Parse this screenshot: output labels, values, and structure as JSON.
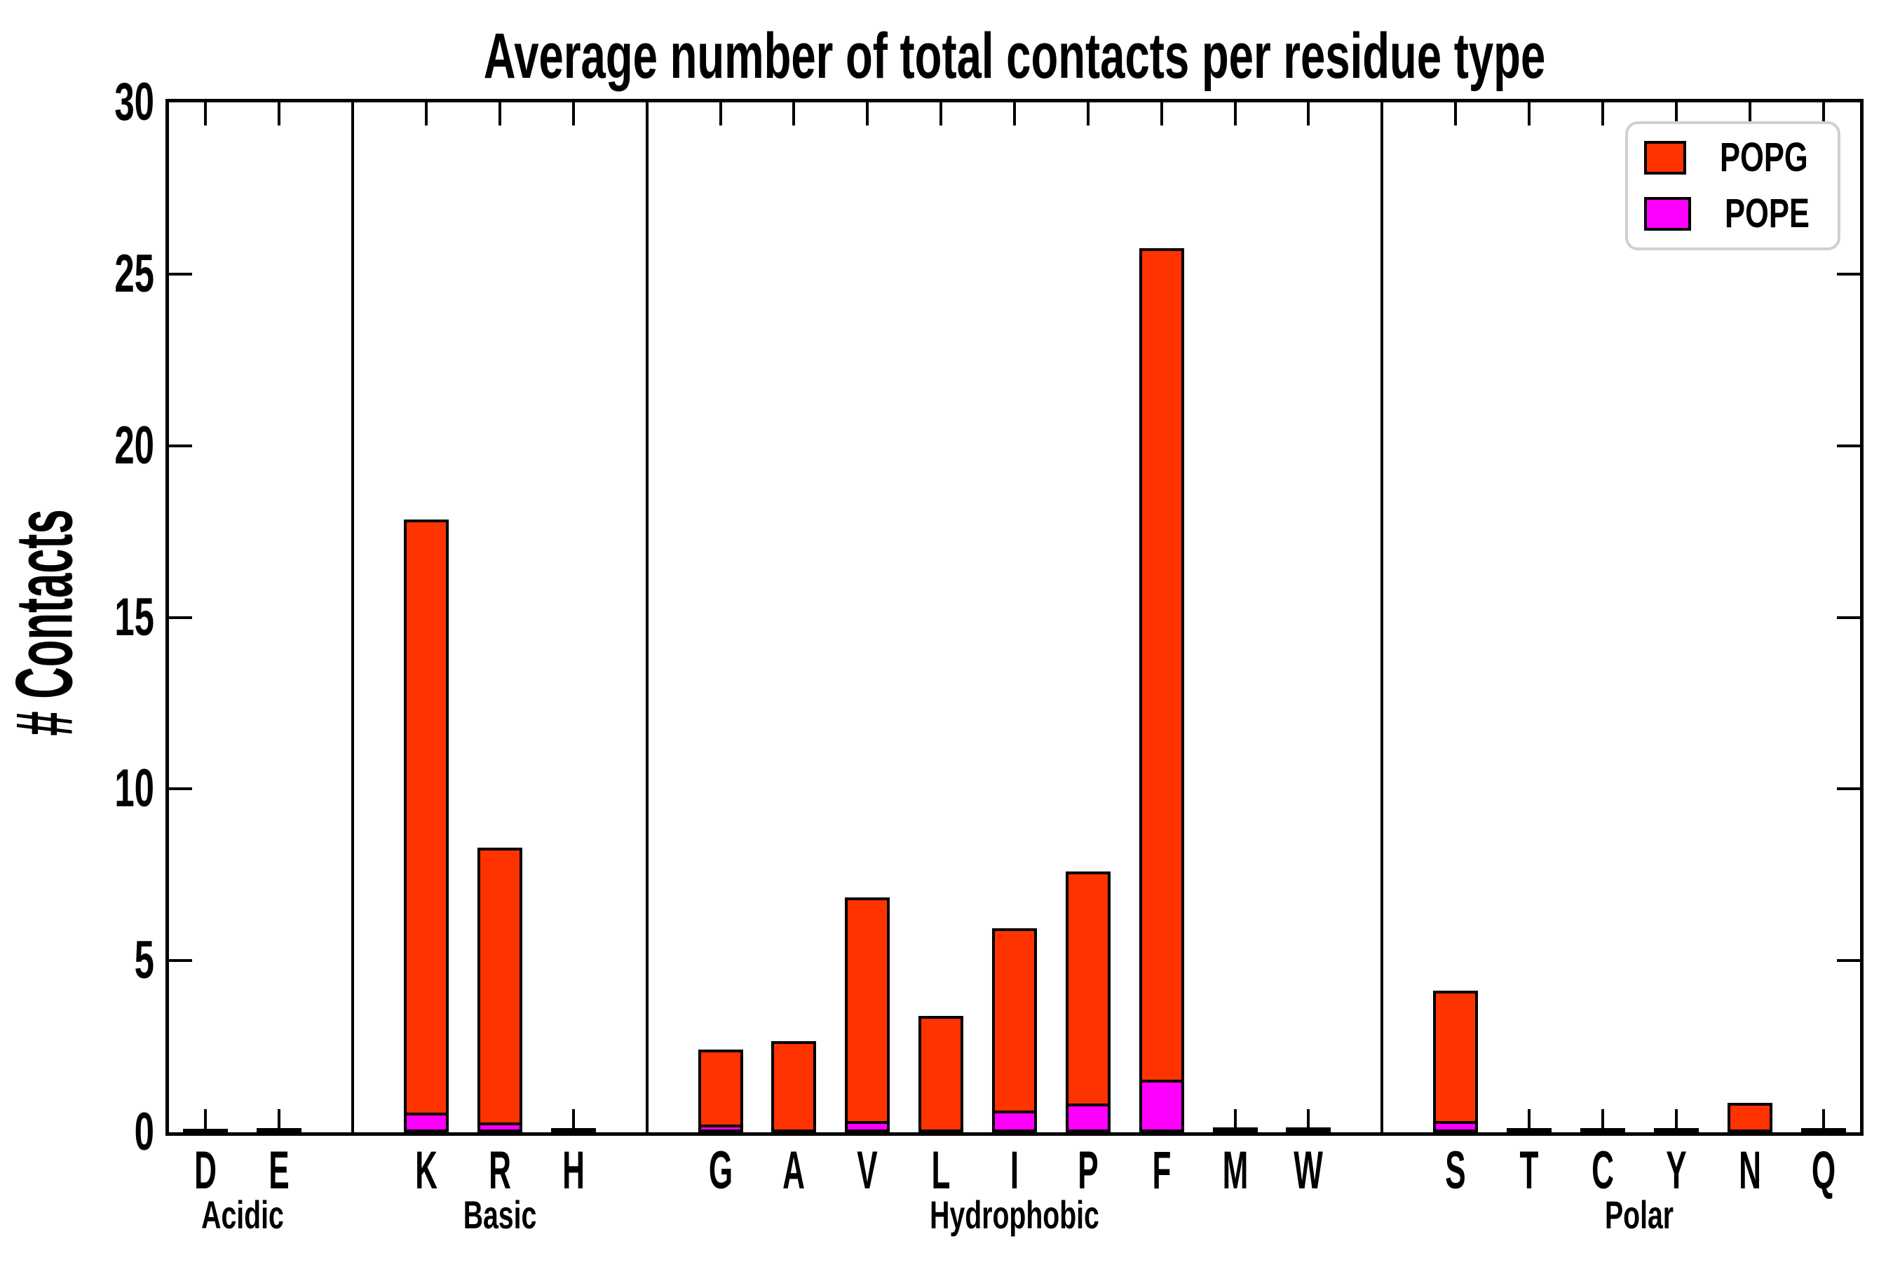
{
  "chart_data": {
    "type": "bar",
    "stacked": true,
    "title": "Average number of total contacts per residue type",
    "ylabel": "# Contacts",
    "xlabel": "",
    "ylim": [
      0,
      30
    ],
    "yticks": [
      0,
      5,
      10,
      15,
      20,
      25,
      30
    ],
    "grid": false,
    "legend_position": "upper right",
    "groups": [
      {
        "label": "Acidic",
        "categories": [
          "D",
          "E"
        ]
      },
      {
        "label": "Basic",
        "categories": [
          "K",
          "R",
          "H"
        ]
      },
      {
        "label": "Hydrophobic",
        "categories": [
          "G",
          "A",
          "V",
          "L",
          "I",
          "P",
          "F",
          "M",
          "W"
        ]
      },
      {
        "label": "Polar",
        "categories": [
          "S",
          "T",
          "C",
          "Y",
          "N",
          "Q"
        ]
      }
    ],
    "categories": [
      "D",
      "E",
      "K",
      "R",
      "H",
      "G",
      "A",
      "V",
      "L",
      "I",
      "P",
      "F",
      "M",
      "W",
      "S",
      "T",
      "C",
      "Y",
      "N",
      "Q"
    ],
    "series": [
      {
        "name": "POPE",
        "color": "#ff00ff",
        "values": [
          0,
          0,
          0.5,
          0.2,
          0,
          0.15,
          0,
          0.25,
          0,
          0.55,
          0.75,
          1.45,
          0,
          0,
          0.25,
          0,
          0,
          0,
          0,
          0
        ]
      },
      {
        "name": "POPG",
        "color": "#ff3300",
        "values": [
          0.03,
          0.04,
          17.35,
          8.1,
          0.05,
          2.25,
          2.65,
          6.6,
          3.4,
          5.4,
          6.85,
          24.3,
          0.06,
          0.06,
          3.87,
          0.04,
          0.05,
          0.05,
          0.85,
          0.04
        ]
      }
    ],
    "totals": [
      0.03,
      0.04,
      17.85,
      8.3,
      0.05,
      2.4,
      2.65,
      6.85,
      3.4,
      5.95,
      7.6,
      25.75,
      0.06,
      0.06,
      4.12,
      0.04,
      0.05,
      0.05,
      0.85,
      0.04
    ]
  },
  "legend": {
    "items": [
      {
        "label": "POPG",
        "color": "#ff3300"
      },
      {
        "label": "POPE",
        "color": "#ff00ff"
      }
    ]
  },
  "colors": {
    "popg": "#ff3300",
    "pope": "#ff00ff",
    "axis": "#000000",
    "legend_border": "#d0d0d0",
    "background": "#ffffff"
  }
}
